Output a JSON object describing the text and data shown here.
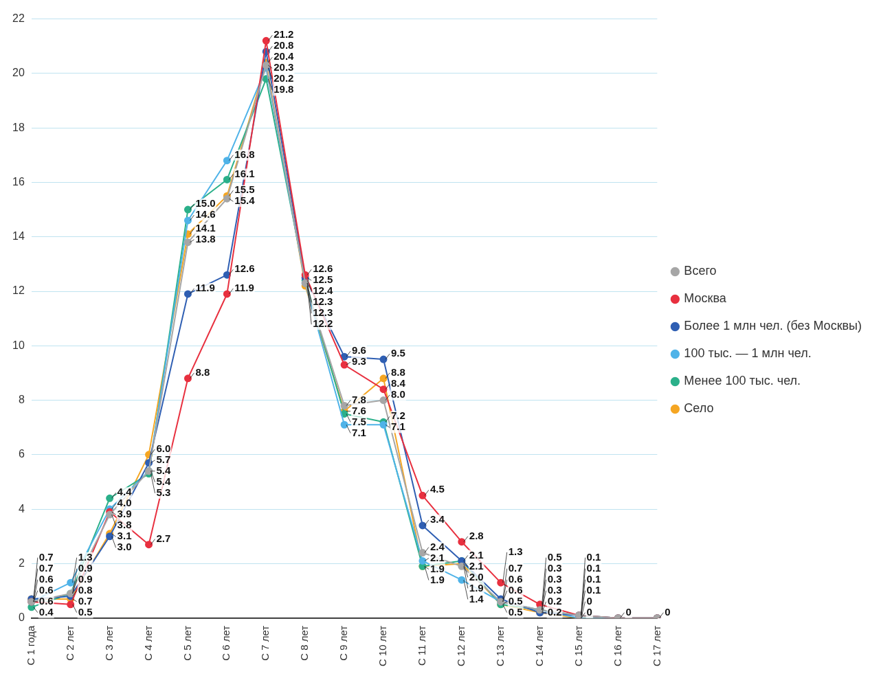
{
  "chart_data": {
    "type": "line",
    "categories": [
      "С 1 года",
      "С 2 лет",
      "С 3 лет",
      "С 4 лет",
      "С 5 лет",
      "С 6 лет",
      "С 7 лет",
      "С 8 лет",
      "С 9 лет",
      "С 10 лет",
      "С 11 лет",
      "С 12 лет",
      "С 13 лет",
      "С 14 лет",
      "С 15 лет",
      "С 16 лет",
      "С 17 лет"
    ],
    "ylim": [
      0,
      22
    ],
    "yticks": [
      0,
      2,
      4,
      6,
      8,
      10,
      12,
      14,
      16,
      18,
      20,
      22
    ],
    "grid": "y",
    "legend": "right",
    "marker": "circle",
    "series": [
      {
        "name": "Всего",
        "color": "#a6a6a6",
        "values": [
          0.6,
          0.9,
          3.8,
          5.4,
          13.8,
          15.4,
          20.3,
          12.3,
          7.8,
          8.0,
          2.4,
          1.9,
          0.6,
          0.3,
          0.1,
          0,
          0
        ],
        "value_labels": [
          "0.6",
          "0.9",
          "3.8",
          "5.4",
          "13.8",
          "15.4",
          "20.3",
          "12.3",
          "7.8",
          "8.0",
          "2.4",
          "1.9",
          "0.6",
          "0.3",
          "0.1",
          "0",
          "0"
        ]
      },
      {
        "name": "Москва",
        "color": "#e8303f",
        "values": [
          0.6,
          0.5,
          3.9,
          2.7,
          8.8,
          11.9,
          21.2,
          12.6,
          9.3,
          8.4,
          4.5,
          2.8,
          1.3,
          0.5,
          0.1,
          0,
          0
        ],
        "value_labels": [
          "0.6",
          "0.5",
          "3.9",
          "2.7",
          "8.8",
          "11.9",
          "21.2",
          "12.6",
          "9.3",
          "8.4",
          "4.5",
          "2.8",
          "1.3",
          "0.5",
          "0.1",
          null,
          null
        ]
      },
      {
        "name": "Более 1 млн чел. (без Москвы)",
        "color": "#2f5fb3",
        "values": [
          0.7,
          0.8,
          3.0,
          5.7,
          11.9,
          12.6,
          20.8,
          12.5,
          9.6,
          9.5,
          3.4,
          2.1,
          0.7,
          0.2,
          0.1,
          0,
          0
        ],
        "value_labels": [
          "0.7",
          "0.8",
          "3.0",
          "5.7",
          "11.9",
          "12.6",
          "20.8",
          "12.5",
          "9.6",
          "9.5",
          "3.4",
          "2.1",
          "0.7",
          "0.2",
          "0.1",
          null,
          null
        ]
      },
      {
        "name": "100 тыс. — 1 млн чел.",
        "color": "#4fb3e8",
        "values": [
          0.6,
          1.3,
          4.0,
          5.4,
          14.6,
          16.8,
          20.2,
          12.3,
          7.1,
          7.1,
          2.1,
          1.4,
          0.6,
          0.3,
          0,
          0,
          0
        ],
        "value_labels": [
          "0.6",
          "1.3",
          "4.0",
          "5.4",
          "14.6",
          "16.8",
          "20.2",
          "12.3",
          "7.1",
          "7.1",
          "2.1",
          "1.4",
          "0.6",
          "0.3",
          "0",
          null,
          null
        ]
      },
      {
        "name": "Менее 100 тыс. чел.",
        "color": "#2bb08a",
        "values": [
          0.4,
          0.9,
          4.4,
          5.3,
          15.0,
          16.1,
          19.8,
          12.4,
          7.5,
          7.2,
          1.9,
          2.1,
          0.5,
          0.3,
          0.1,
          0,
          0
        ],
        "value_labels": [
          "0.4",
          "0.9",
          "4.4",
          "5.3",
          "15.0",
          "16.1",
          "19.8",
          "12.4",
          "7.5",
          "7.2",
          "1.9",
          "2.1",
          "0.5",
          "0.3",
          "0.1",
          null,
          null
        ]
      },
      {
        "name": "Село",
        "color": "#f5a623",
        "values": [
          0.7,
          0.7,
          3.1,
          6.0,
          14.1,
          15.5,
          20.4,
          12.2,
          7.6,
          8.8,
          1.9,
          2.0,
          0.5,
          0.2,
          0,
          0,
          0
        ],
        "value_labels": [
          "0.7",
          "0.7",
          "3.1",
          "6.0",
          "14.1",
          "15.5",
          "20.4",
          "12.2",
          "7.6",
          "8.8",
          "1.9",
          "2.0",
          "0.5",
          "0.2",
          "0",
          null,
          null
        ]
      }
    ]
  }
}
